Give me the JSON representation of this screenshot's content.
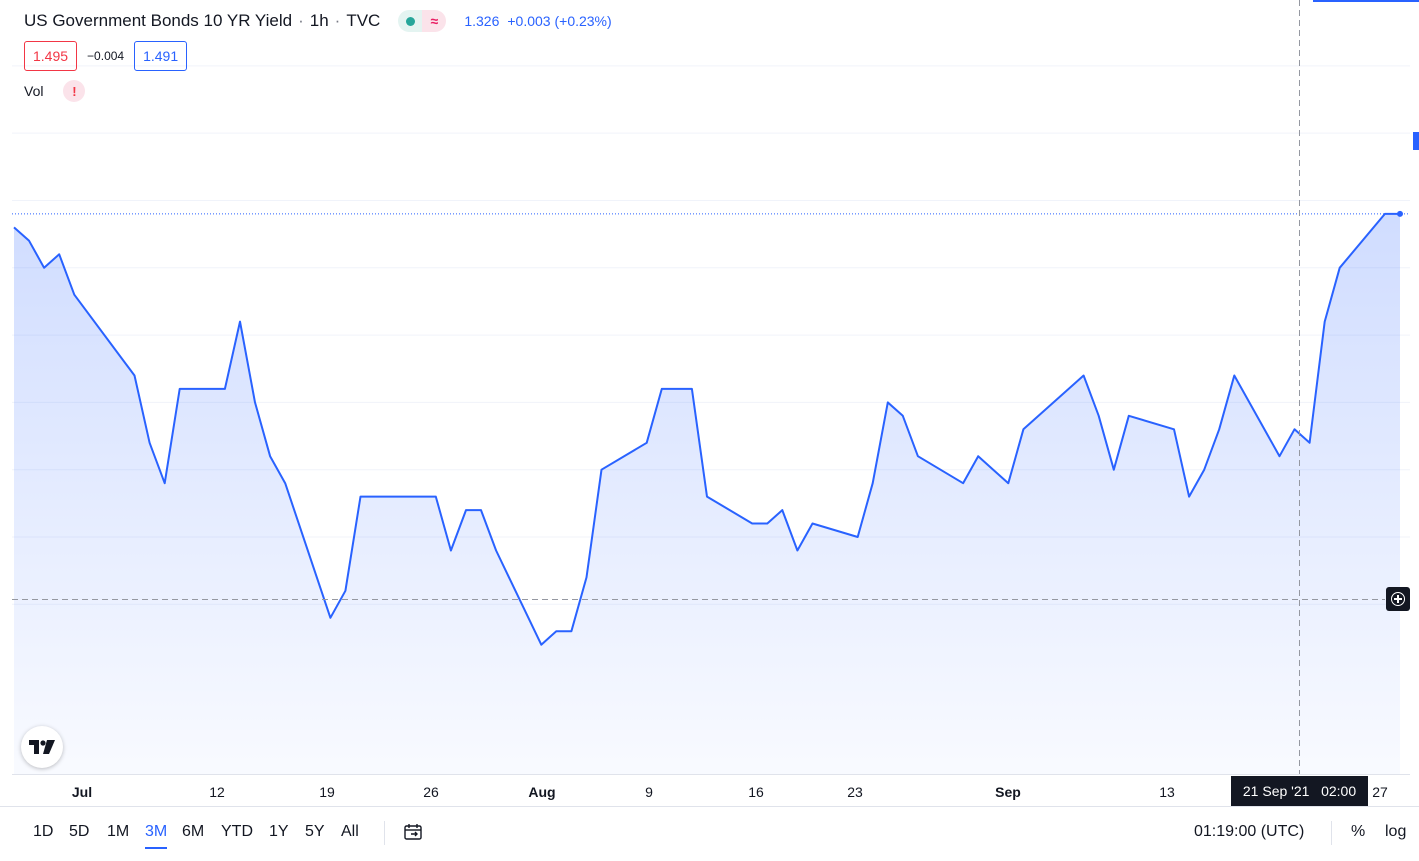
{
  "legend": {
    "title": "US Government Bonds 10 YR Yield",
    "interval": "1h",
    "source": "TVC",
    "last_price": "1.326",
    "change": "+0.003 (+0.23%)"
  },
  "quote": {
    "bid": "1.495",
    "spread": "−0.004",
    "ask": "1.491"
  },
  "volume": {
    "label": "Vol",
    "warning": "!"
  },
  "crosshair": {
    "time_label": "21 Sep '21   02:00"
  },
  "bottom_bar": {
    "ranges": [
      "1D",
      "5D",
      "1M",
      "3M",
      "6M",
      "YTD",
      "1Y",
      "5Y",
      "All"
    ],
    "active_range": "3M",
    "clock": "01:19:00 (UTC)",
    "percent_label": "%",
    "log_label": "log"
  },
  "colors": {
    "line": "#2962ff",
    "fill_top": "#2962ff",
    "crosshair": "#9598a1",
    "up": "#26a69a",
    "down": "#f23645"
  },
  "icons": [
    "tradingview-logo-icon",
    "go-to-date-icon",
    "plus-circle-icon",
    "market-status-icon"
  ],
  "chart_data": {
    "type": "area",
    "title": "US Government Bonds 10 YR Yield",
    "x_tick_labels": [
      "Jul",
      "12",
      "19",
      "26",
      "Aug",
      "9",
      "16",
      "23",
      "Sep",
      "13",
      "27"
    ],
    "x_major_ticks": [
      "Jul",
      "Aug",
      "Sep"
    ],
    "x_range": [
      "2021-06-28",
      "2021-09-28"
    ],
    "y_range": [
      1.12,
      1.64
    ],
    "grid": true,
    "series": [
      {
        "values": [
          [
            "2021-06-28",
            1.48
          ],
          [
            "2021-06-29",
            1.47
          ],
          [
            "2021-06-30",
            1.45
          ],
          [
            "2021-07-01",
            1.46
          ],
          [
            "2021-07-02",
            1.43
          ],
          [
            "2021-07-06",
            1.37
          ],
          [
            "2021-07-07",
            1.32
          ],
          [
            "2021-07-08",
            1.29
          ],
          [
            "2021-07-09",
            1.36
          ],
          [
            "2021-07-12",
            1.36
          ],
          [
            "2021-07-13",
            1.41
          ],
          [
            "2021-07-14",
            1.35
          ],
          [
            "2021-07-15",
            1.31
          ],
          [
            "2021-07-16",
            1.29
          ],
          [
            "2021-07-19",
            1.19
          ],
          [
            "2021-07-20",
            1.21
          ],
          [
            "2021-07-21",
            1.28
          ],
          [
            "2021-07-22",
            1.28
          ],
          [
            "2021-07-23",
            1.28
          ],
          [
            "2021-07-26",
            1.28
          ],
          [
            "2021-07-27",
            1.24
          ],
          [
            "2021-07-28",
            1.27
          ],
          [
            "2021-07-29",
            1.27
          ],
          [
            "2021-07-30",
            1.24
          ],
          [
            "2021-08-02",
            1.17
          ],
          [
            "2021-08-03",
            1.18
          ],
          [
            "2021-08-04",
            1.18
          ],
          [
            "2021-08-05",
            1.22
          ],
          [
            "2021-08-06",
            1.3
          ],
          [
            "2021-08-09",
            1.32
          ],
          [
            "2021-08-10",
            1.36
          ],
          [
            "2021-08-11",
            1.36
          ],
          [
            "2021-08-12",
            1.36
          ],
          [
            "2021-08-13",
            1.28
          ],
          [
            "2021-08-16",
            1.26
          ],
          [
            "2021-08-17",
            1.26
          ],
          [
            "2021-08-18",
            1.27
          ],
          [
            "2021-08-19",
            1.24
          ],
          [
            "2021-08-20",
            1.26
          ],
          [
            "2021-08-23",
            1.25
          ],
          [
            "2021-08-24",
            1.29
          ],
          [
            "2021-08-25",
            1.35
          ],
          [
            "2021-08-26",
            1.34
          ],
          [
            "2021-08-27",
            1.31
          ],
          [
            "2021-08-30",
            1.29
          ],
          [
            "2021-08-31",
            1.31
          ],
          [
            "2021-09-01",
            1.3
          ],
          [
            "2021-09-02",
            1.29
          ],
          [
            "2021-09-03",
            1.33
          ],
          [
            "2021-09-07",
            1.37
          ],
          [
            "2021-09-08",
            1.34
          ],
          [
            "2021-09-09",
            1.3
          ],
          [
            "2021-09-10",
            1.34
          ],
          [
            "2021-09-13",
            1.33
          ],
          [
            "2021-09-14",
            1.28
          ],
          [
            "2021-09-15",
            1.3
          ],
          [
            "2021-09-16",
            1.33
          ],
          [
            "2021-09-17",
            1.37
          ],
          [
            "2021-09-20",
            1.31
          ],
          [
            "2021-09-21",
            1.33
          ],
          [
            "2021-09-22",
            1.32
          ],
          [
            "2021-09-23",
            1.41
          ],
          [
            "2021-09-24",
            1.45
          ],
          [
            "2021-09-27",
            1.49
          ],
          [
            "2021-09-28",
            1.49
          ]
        ]
      }
    ]
  }
}
